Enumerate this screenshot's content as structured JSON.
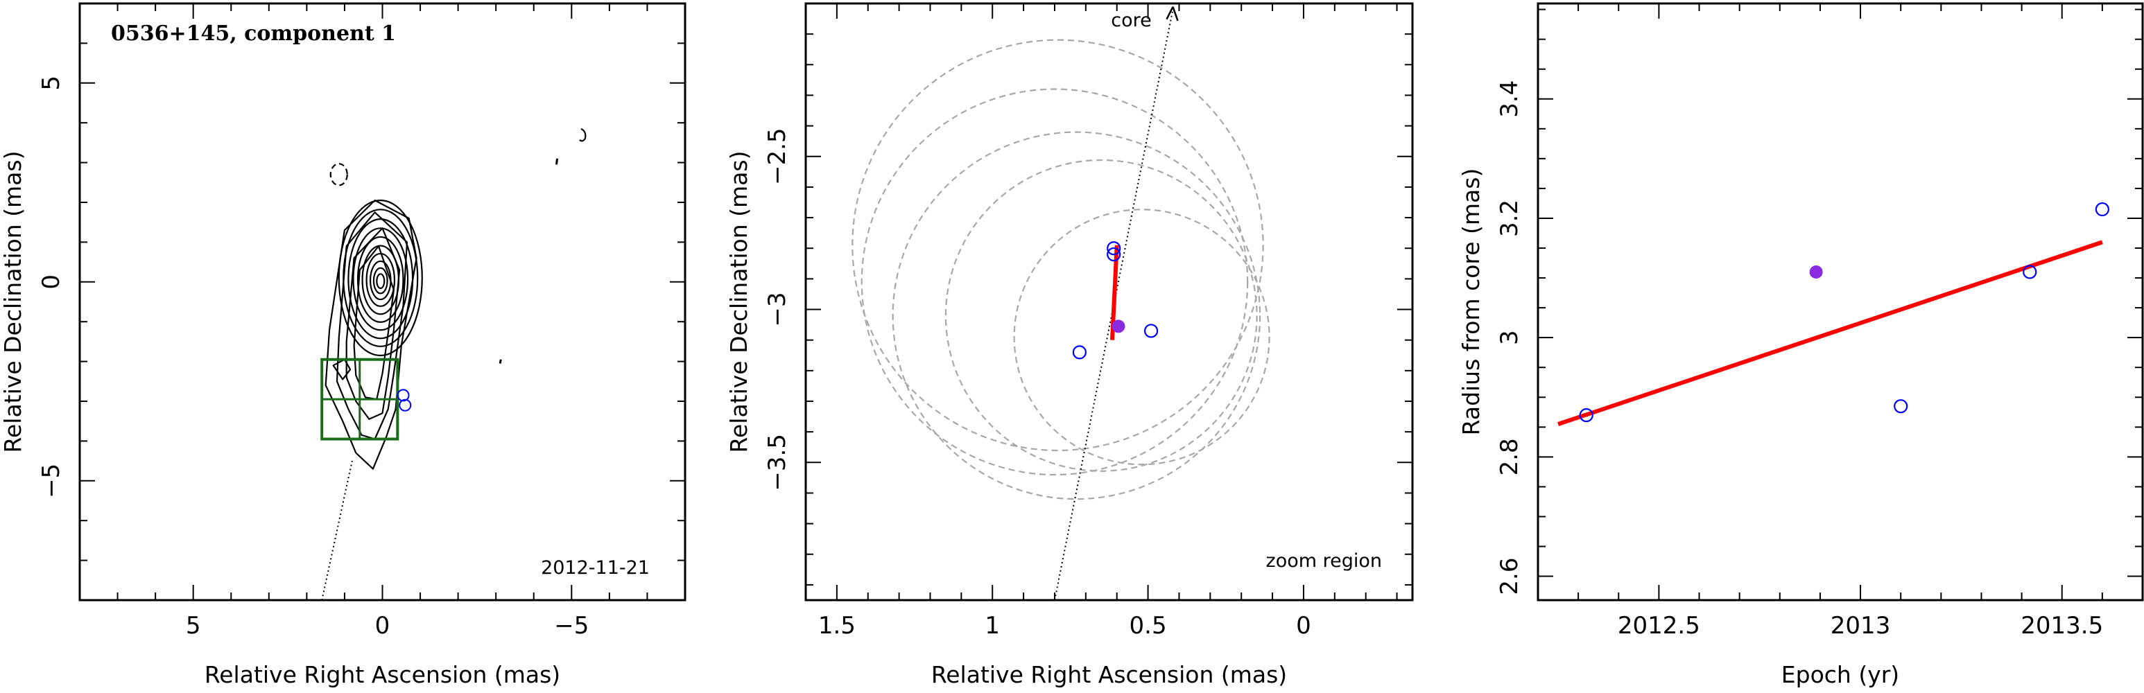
{
  "chart_data": [
    {
      "type": "scatter",
      "panel": "contour-map",
      "title": "0536+145, component 1",
      "date_label": "2012-11-21",
      "xlabel": "Relative Right Ascension (mas)",
      "ylabel": "Relative Declination (mas)",
      "xlim": [
        8,
        -8
      ],
      "ylim": [
        -8,
        7
      ],
      "x_ticks": [
        5,
        0,
        -5
      ],
      "y_ticks": [
        5,
        0,
        -5
      ],
      "x_tick_labels": [
        "5",
        "0",
        "−5"
      ],
      "y_tick_labels": [
        "5",
        "0",
        "−5"
      ],
      "source_points": [
        {
          "x": -0.6,
          "y": -3.1
        },
        {
          "x": -0.55,
          "y": -2.85
        }
      ],
      "zoom_box": {
        "x": [
          1.6,
          -0.4
        ],
        "y": [
          -3.95,
          -1.95
        ]
      },
      "ridge_line": {
        "x1": 1.6,
        "y1": -8.0,
        "x2": 0.8,
        "y2": -4.5
      },
      "colors": {
        "contours": "#000000",
        "zoom_box": "#1a6b1a",
        "points": "#0000ff"
      }
    },
    {
      "type": "scatter",
      "panel": "zoom-region",
      "label": "zoom region",
      "core_label": "core",
      "xlabel": "Relative Right Ascension (mas)",
      "ylabel": "Relative Declination (mas)",
      "xlim": [
        1.6,
        -0.35
      ],
      "ylim": [
        -3.95,
        -2.0
      ],
      "x_ticks": [
        1.5,
        1,
        0.5,
        0
      ],
      "y_ticks": [
        -2.5,
        -3,
        -3.5
      ],
      "x_tick_labels": [
        "1.5",
        "1",
        "0.5",
        "0"
      ],
      "y_tick_labels": [
        "−2.5",
        "−3",
        "−3.5"
      ],
      "open_points": [
        {
          "x": 0.61,
          "y": -2.8
        },
        {
          "x": 0.61,
          "y": -2.82
        },
        {
          "x": 0.72,
          "y": -3.14
        },
        {
          "x": 0.49,
          "y": -3.07
        }
      ],
      "filled_point": {
        "x": 0.595,
        "y": -3.055
      },
      "fit_segment": {
        "x1": 0.6,
        "y1": -2.79,
        "x2": 0.615,
        "y2": -3.1
      },
      "ridge_line": {
        "x1": 0.8,
        "y1": -3.95,
        "x2": 0.42,
        "y2": -2.02
      },
      "error_circles": [
        {
          "cx": 0.79,
          "cy": -2.79,
          "r": 0.66
        },
        {
          "cx": 0.8,
          "cy": -2.91,
          "r": 0.62
        },
        {
          "cx": 0.73,
          "cy": -3.02,
          "r": 0.59
        },
        {
          "cx": 0.65,
          "cy": -3.02,
          "r": 0.5
        },
        {
          "cx": 0.52,
          "cy": -3.09,
          "r": 0.41
        }
      ],
      "colors": {
        "fit": "#ff0000",
        "filled": "#8a2be2",
        "open": "#0000ff",
        "circles": "#a8a8a8"
      }
    },
    {
      "type": "scatter",
      "panel": "radius-vs-epoch",
      "xlabel": "Epoch (yr)",
      "ylabel": "Radius from core (mas)",
      "xlim": [
        2012.2,
        2013.7
      ],
      "ylim": [
        2.56,
        3.56
      ],
      "x_ticks": [
        2012.5,
        2013,
        2013.5
      ],
      "y_ticks": [
        2.6,
        2.8,
        3,
        3.2,
        3.4
      ],
      "x_tick_labels": [
        "2012.5",
        "2013",
        "2013.5"
      ],
      "y_tick_labels": [
        "2.6",
        "2.8",
        "3",
        "3.2",
        "3.4"
      ],
      "open_points": [
        {
          "x": 2012.32,
          "y": 2.87
        },
        {
          "x": 2013.1,
          "y": 2.885
        },
        {
          "x": 2013.42,
          "y": 3.11
        },
        {
          "x": 2013.6,
          "y": 3.215
        }
      ],
      "filled_point": {
        "x": 2012.89,
        "y": 3.11
      },
      "fit_line": {
        "x1": 2012.25,
        "y1": 2.855,
        "x2": 2013.6,
        "y2": 3.16
      },
      "colors": {
        "fit": "#ff0000",
        "filled": "#8a2be2",
        "open": "#0000ff"
      }
    }
  ]
}
